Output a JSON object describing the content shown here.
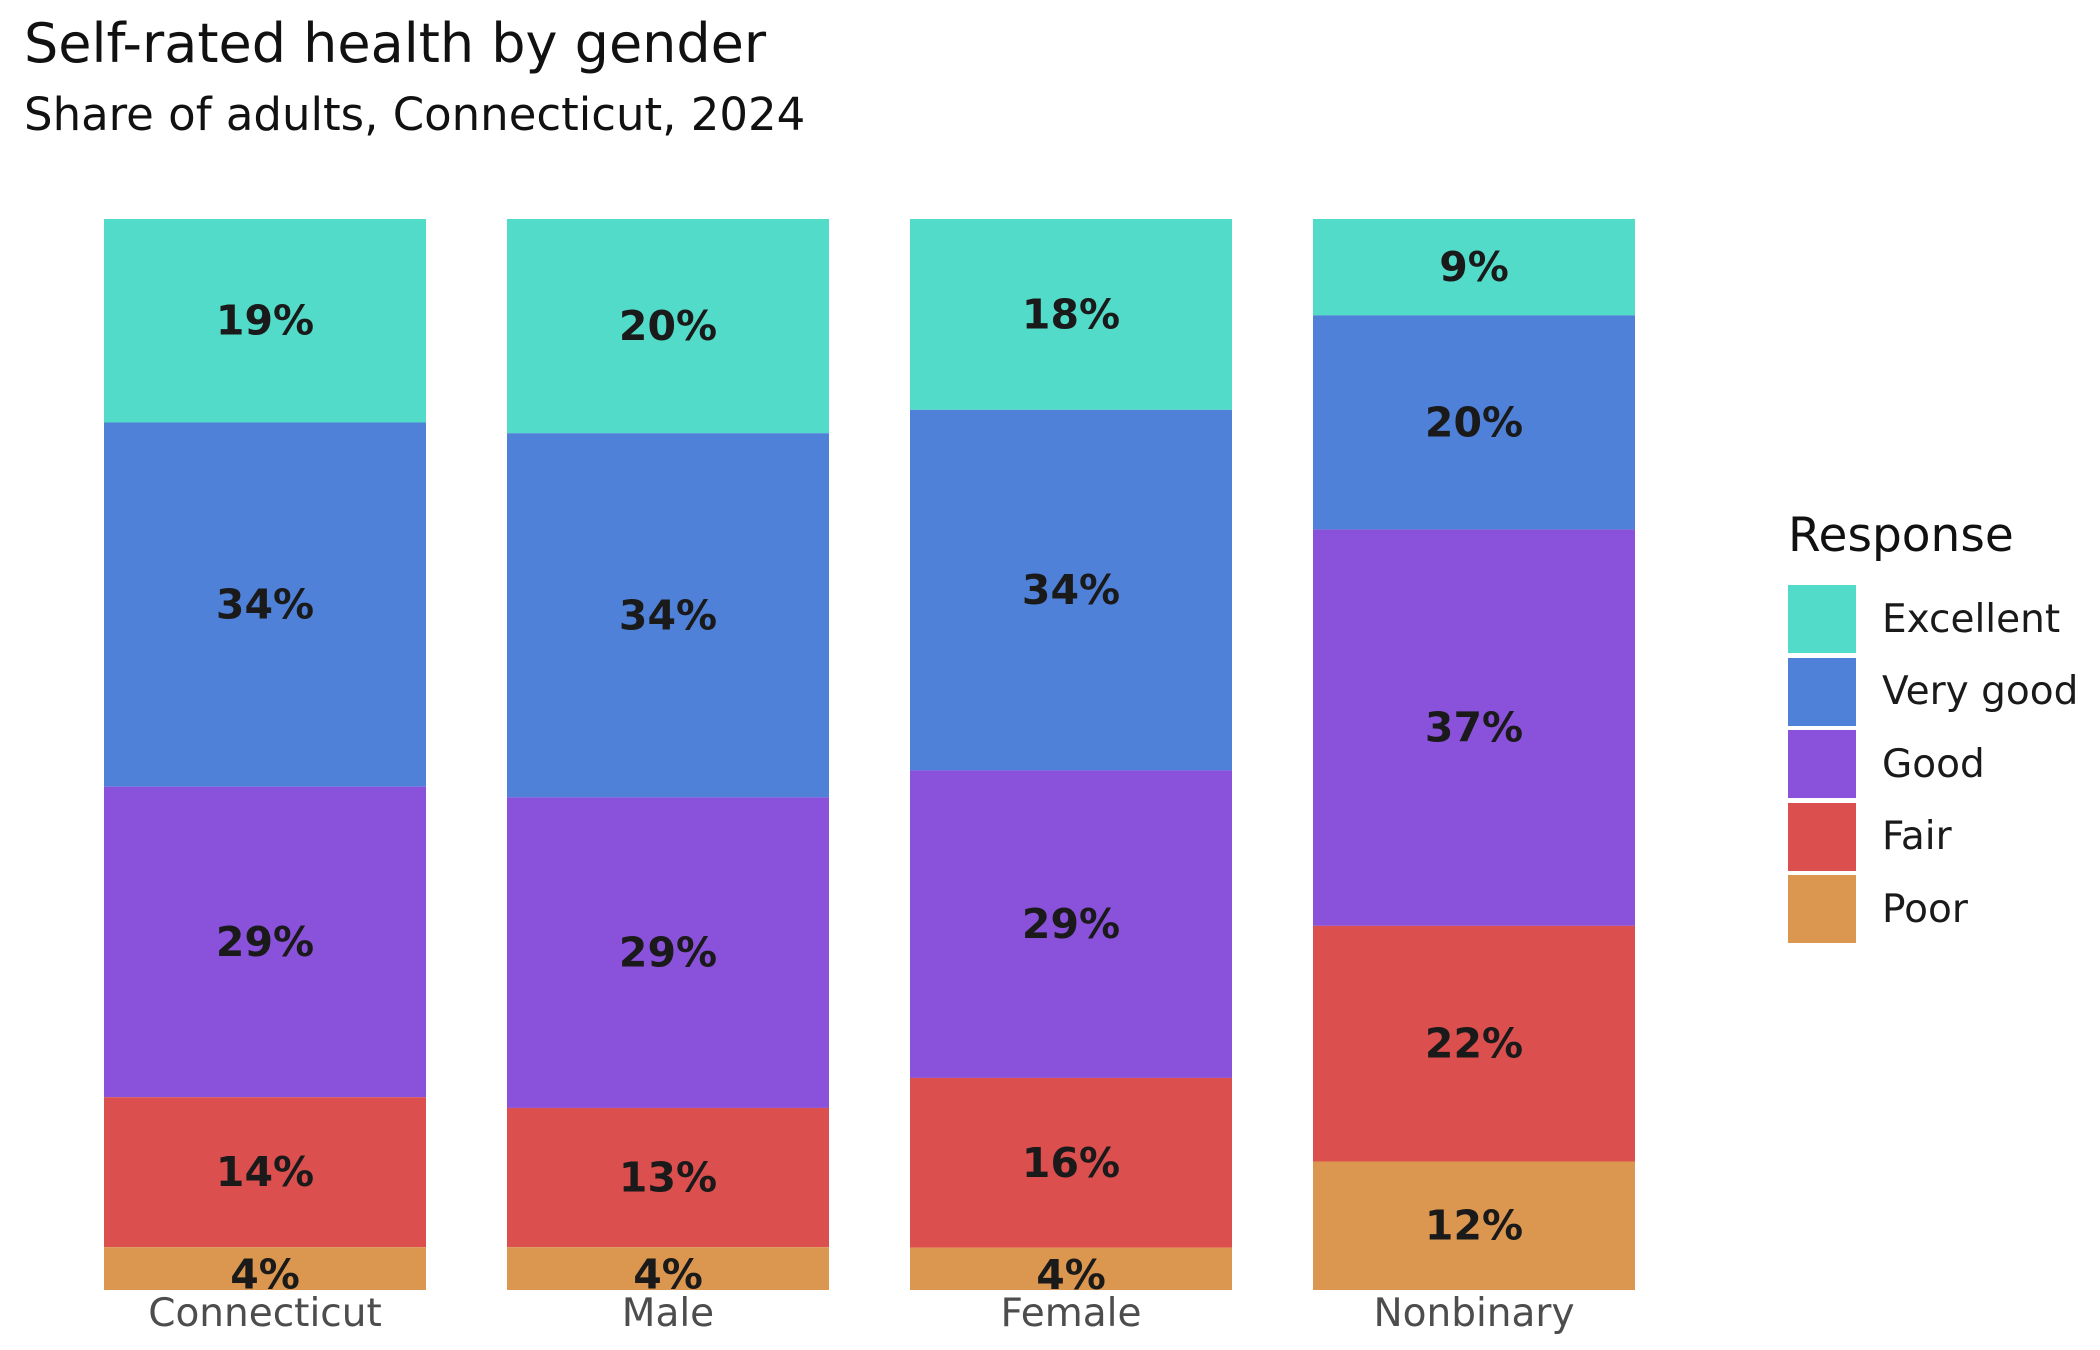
{
  "chart_data": {
    "type": "bar",
    "stacked": true,
    "title": "Self-rated health by gender",
    "subtitle": "Share of adults, Connecticut, 2024",
    "xlabel": "",
    "ylabel": "",
    "ylim": [
      0,
      100
    ],
    "grid": false,
    "legend_position": "right",
    "legend_title": "Response",
    "categories": [
      "Connecticut",
      "Male",
      "Female",
      "Nonbinary"
    ],
    "series": [
      {
        "name": "Excellent",
        "color": "#52dbc9",
        "values": [
          19,
          20,
          18,
          9
        ]
      },
      {
        "name": "Very good",
        "color": "#4f81d9",
        "values": [
          34,
          34,
          34,
          20
        ]
      },
      {
        "name": "Good",
        "color": "#8a51db",
        "values": [
          29,
          29,
          29,
          37
        ]
      },
      {
        "name": "Fair",
        "color": "#db4f4f",
        "values": [
          14,
          13,
          16,
          22
        ]
      },
      {
        "name": "Poor",
        "color": "#db974f",
        "values": [
          4,
          4,
          4,
          12
        ]
      }
    ],
    "data_labels": [
      [
        "19%",
        "20%",
        "18%",
        "9%"
      ],
      [
        "34%",
        "34%",
        "34%",
        "20%"
      ],
      [
        "29%",
        "29%",
        "29%",
        "37%"
      ],
      [
        "14%",
        "13%",
        "16%",
        "22%"
      ],
      [
        "4%",
        "4%",
        "4%",
        "12%"
      ]
    ]
  }
}
